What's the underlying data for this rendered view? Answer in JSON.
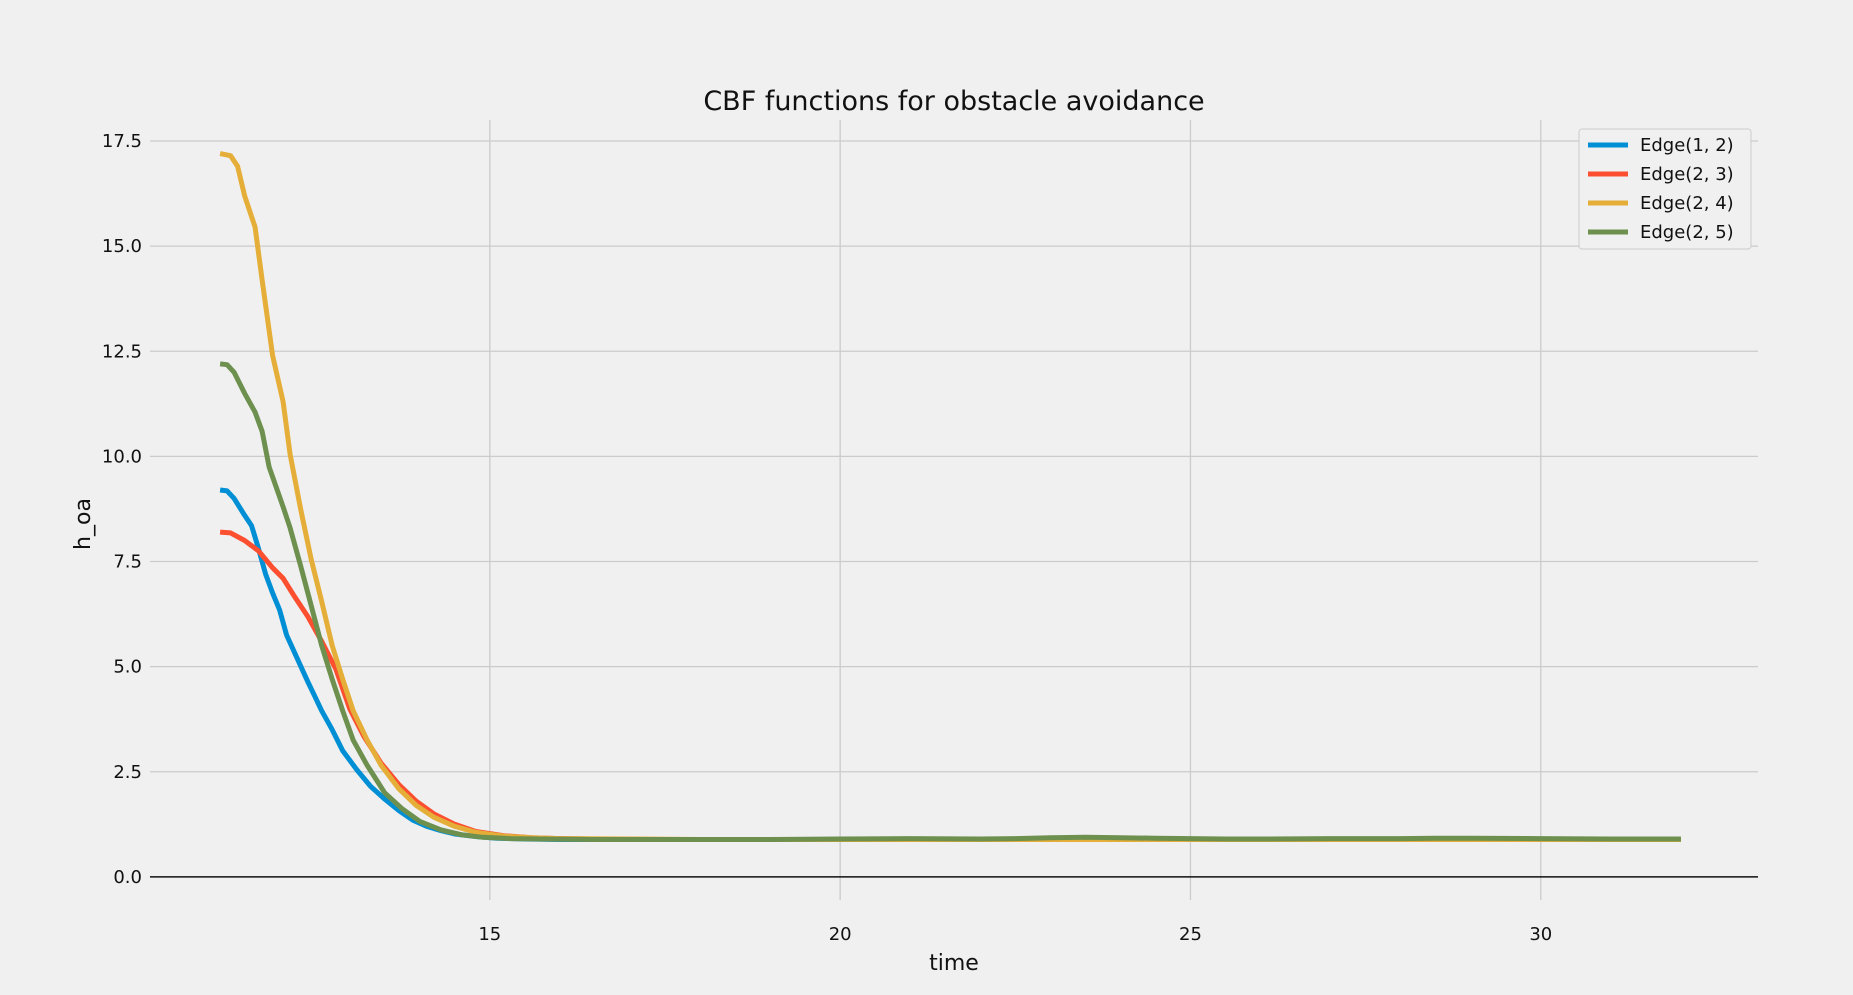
{
  "chart_data": {
    "type": "line",
    "title": "CBF functions for obstacle avoidance",
    "xlabel": "time",
    "ylabel": "h_oa",
    "xlim": [
      10.15,
      33.1
    ],
    "ylim": [
      -0.55,
      18.0
    ],
    "x_ticks": [
      15,
      20,
      25,
      30
    ],
    "x_tick_labels": [
      "15",
      "20",
      "25",
      "30"
    ],
    "y_ticks": [
      0,
      2.5,
      5,
      7.5,
      10,
      12.5,
      15,
      17.5
    ],
    "y_tick_labels": [
      "0.0",
      "2.5",
      "5.0",
      "7.5",
      "10.0",
      "12.5",
      "15.0",
      "17.5"
    ],
    "grid": true,
    "legend_position": "top-right",
    "series": [
      {
        "name": "Edge(1, 2)",
        "color": "#008fd5",
        "x": [
          11.15,
          11.25,
          11.35,
          11.5,
          11.6,
          11.7,
          11.8,
          11.9,
          12.0,
          12.1,
          12.25,
          12.4,
          12.5,
          12.6,
          12.75,
          12.9,
          13.1,
          13.3,
          13.5,
          13.7,
          13.9,
          14.1,
          14.3,
          14.5,
          14.8,
          15.1,
          15.5,
          16.0,
          17.0,
          18.0,
          20.0,
          22.0,
          23.0,
          24.0,
          25.0,
          27.0,
          29.0,
          31.0,
          32.0
        ],
        "y": [
          9.2,
          9.18,
          9.0,
          8.6,
          8.35,
          7.8,
          7.2,
          6.75,
          6.35,
          5.75,
          5.2,
          4.65,
          4.3,
          3.95,
          3.5,
          3.0,
          2.55,
          2.15,
          1.85,
          1.58,
          1.35,
          1.2,
          1.1,
          1.02,
          0.96,
          0.92,
          0.9,
          0.89,
          0.89,
          0.89,
          0.89,
          0.89,
          0.89,
          0.89,
          0.89,
          0.89,
          0.89,
          0.89,
          0.89
        ]
      },
      {
        "name": "Edge(2, 3)",
        "color": "#fc4f30",
        "x": [
          11.15,
          11.3,
          11.5,
          11.7,
          11.9,
          12.05,
          12.2,
          12.4,
          12.6,
          12.8,
          13.0,
          13.2,
          13.45,
          13.7,
          13.95,
          14.2,
          14.5,
          14.8,
          15.2,
          15.6,
          16.0,
          17.0,
          18.0,
          20.0,
          22.0,
          24.0,
          26.0,
          28.0,
          30.0,
          32.0
        ],
        "y": [
          8.2,
          8.18,
          8.0,
          7.75,
          7.35,
          7.1,
          6.7,
          6.2,
          5.6,
          4.95,
          4.0,
          3.35,
          2.7,
          2.2,
          1.8,
          1.5,
          1.25,
          1.08,
          0.98,
          0.93,
          0.91,
          0.89,
          0.89,
          0.89,
          0.89,
          0.89,
          0.89,
          0.89,
          0.89,
          0.89
        ]
      },
      {
        "name": "Edge(2, 4)",
        "color": "#e5ae38",
        "x": [
          11.15,
          11.3,
          11.4,
          11.5,
          11.65,
          11.75,
          11.9,
          12.05,
          12.15,
          12.3,
          12.45,
          12.6,
          12.75,
          12.9,
          13.05,
          13.25,
          13.45,
          13.7,
          13.95,
          14.2,
          14.5,
          14.8,
          15.2,
          15.6,
          16.0,
          17.0,
          18.0,
          20.0,
          22.0,
          24.0,
          26.0,
          28.0,
          30.0,
          32.0
        ],
        "y": [
          17.2,
          17.15,
          16.9,
          16.2,
          15.45,
          14.2,
          12.4,
          11.3,
          10.05,
          8.75,
          7.55,
          6.55,
          5.5,
          4.7,
          3.95,
          3.25,
          2.65,
          2.1,
          1.7,
          1.42,
          1.2,
          1.06,
          0.97,
          0.93,
          0.91,
          0.9,
          0.89,
          0.89,
          0.89,
          0.89,
          0.89,
          0.89,
          0.89,
          0.89
        ]
      },
      {
        "name": "Edge(2, 5)",
        "color": "#6d904f",
        "x": [
          11.15,
          11.25,
          11.35,
          11.5,
          11.65,
          11.75,
          11.85,
          12.05,
          12.15,
          12.3,
          12.45,
          12.6,
          12.75,
          12.9,
          13.05,
          13.25,
          13.5,
          13.75,
          14.0,
          14.3,
          14.6,
          14.9,
          15.3,
          15.7,
          16.5,
          18.0,
          19.0,
          20.0,
          21.0,
          22.0,
          22.5,
          23.0,
          23.5,
          24.0,
          24.5,
          25.0,
          25.5,
          26.0,
          27.0,
          28.0,
          28.5,
          29.0,
          30.0,
          31.0,
          32.0
        ],
        "y": [
          12.2,
          12.18,
          12.0,
          11.5,
          11.05,
          10.6,
          9.75,
          8.8,
          8.3,
          7.4,
          6.45,
          5.5,
          4.7,
          3.95,
          3.25,
          2.65,
          2.0,
          1.62,
          1.32,
          1.12,
          1.0,
          0.94,
          0.91,
          0.9,
          0.89,
          0.89,
          0.89,
          0.9,
          0.91,
          0.9,
          0.91,
          0.93,
          0.94,
          0.93,
          0.92,
          0.91,
          0.9,
          0.9,
          0.91,
          0.91,
          0.92,
          0.92,
          0.91,
          0.9,
          0.9
        ]
      }
    ]
  }
}
